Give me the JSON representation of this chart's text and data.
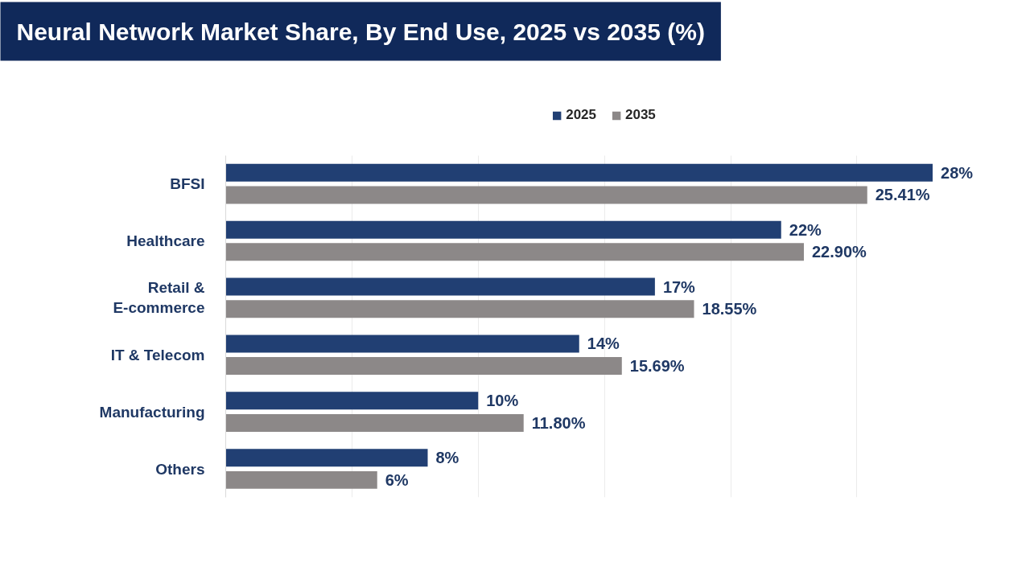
{
  "chart_data": {
    "type": "bar",
    "orientation": "horizontal",
    "title": "Neural Network Market Share, By End Use, 2025 vs 2035 (%)",
    "categories": [
      "BFSI",
      "Healthcare",
      "Retail & E-commerce",
      "IT & Telecom",
      "Manufacturing",
      "Others"
    ],
    "series": [
      {
        "name": "2025",
        "color": "#213f73",
        "values": [
          28,
          22,
          17,
          14,
          10,
          8
        ],
        "value_labels": [
          "28%",
          "22%",
          "17%",
          "14%",
          "10%",
          "8%"
        ]
      },
      {
        "name": "2035",
        "color": "#8c8888",
        "values": [
          25.41,
          22.9,
          18.55,
          15.69,
          11.8,
          6
        ],
        "value_labels": [
          "25.41%",
          "22.90%",
          "18.55%",
          "15.69%",
          "11.80%",
          "6%"
        ]
      }
    ],
    "xticks": [
      {
        "value": 0,
        "label": null
      },
      {
        "value": 5,
        "label": null
      },
      {
        "value": 10,
        "label": null
      },
      {
        "value": 15,
        "label": null
      },
      {
        "value": 20,
        "label": null
      },
      {
        "value": 25,
        "label": null
      }
    ],
    "grid": "x",
    "legend": "top",
    "tick_labels": "y"
  }
}
